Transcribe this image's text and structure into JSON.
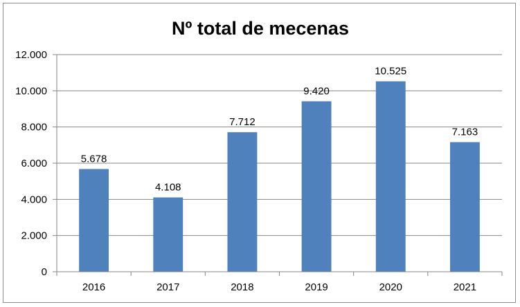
{
  "chart_data": {
    "type": "bar",
    "title": "Nº total de mecenas",
    "xlabel": "",
    "ylabel": "",
    "categories": [
      "2016",
      "2017",
      "2018",
      "2019",
      "2020",
      "2021"
    ],
    "values": [
      5678,
      4108,
      7712,
      9420,
      10525,
      7163
    ],
    "value_labels": [
      "5.678",
      "4.108",
      "7.712",
      "9.420",
      "10.525",
      "7.163"
    ],
    "ylim": [
      0,
      12000
    ],
    "yticks": [
      0,
      2000,
      4000,
      6000,
      8000,
      10000,
      12000
    ],
    "ytick_labels": [
      "0",
      "2.000",
      "4.000",
      "6.000",
      "8.000",
      "10.000",
      "12.000"
    ],
    "grid": true,
    "legend": "none",
    "colors": {
      "bar": "#4f81bd",
      "grid": "#868686",
      "axis": "#868686"
    }
  }
}
